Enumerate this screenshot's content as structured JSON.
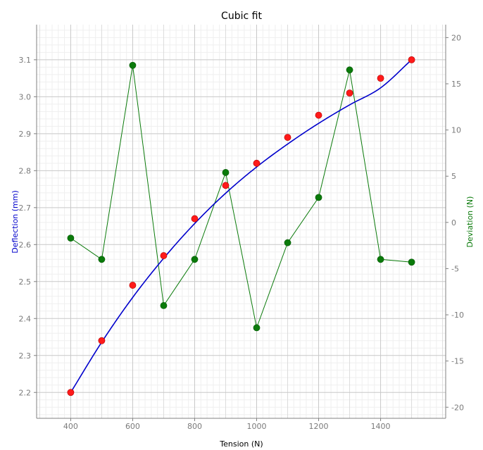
{
  "chart_data": {
    "type": "scatter",
    "title": "Cubic fit",
    "xlabel": "Tension (N)",
    "ylabel": "Deflection (mm)",
    "y2label": "Deviation (N)",
    "xlim": [
      290,
      1610
    ],
    "ylim": [
      2.13,
      3.195
    ],
    "y2lim": [
      -21.2,
      21.4
    ],
    "x_ticks": [
      400,
      600,
      800,
      1000,
      1200,
      1400
    ],
    "y_ticks": [
      2.2,
      2.3,
      2.4,
      2.5,
      2.6,
      2.7,
      2.8,
      2.9,
      3.0,
      3.1
    ],
    "y2_ticks": [
      -20,
      -15,
      -10,
      -5,
      0,
      5,
      10,
      15,
      20
    ],
    "grid": true,
    "x": [
      400,
      500,
      600,
      700,
      800,
      900,
      1000,
      1100,
      1200,
      1300,
      1400,
      1500
    ],
    "series": [
      {
        "kind": "points",
        "axis": "left",
        "color": "#ff1a1a",
        "values": [
          2.2,
          2.34,
          2.49,
          2.57,
          2.67,
          2.76,
          2.82,
          2.89,
          2.95,
          3.01,
          3.05,
          3.1
        ]
      },
      {
        "kind": "fit",
        "axis": "left",
        "color": "#0000cc",
        "values": [
          2.2,
          2.336,
          2.457,
          2.563,
          2.657,
          2.739,
          2.81,
          2.872,
          2.928,
          2.978,
          3.024,
          3.1
        ]
      },
      {
        "kind": "line-points",
        "axis": "right",
        "color": "#0a7a0a",
        "values": [
          -1.7,
          -4.0,
          17.0,
          -9.0,
          -4.0,
          5.4,
          -11.4,
          -2.2,
          2.7,
          16.5,
          -4.0,
          -4.3
        ]
      }
    ],
    "colors": {
      "left_axis_label": "#0000cc",
      "right_axis_label": "#0a7a0a"
    }
  }
}
